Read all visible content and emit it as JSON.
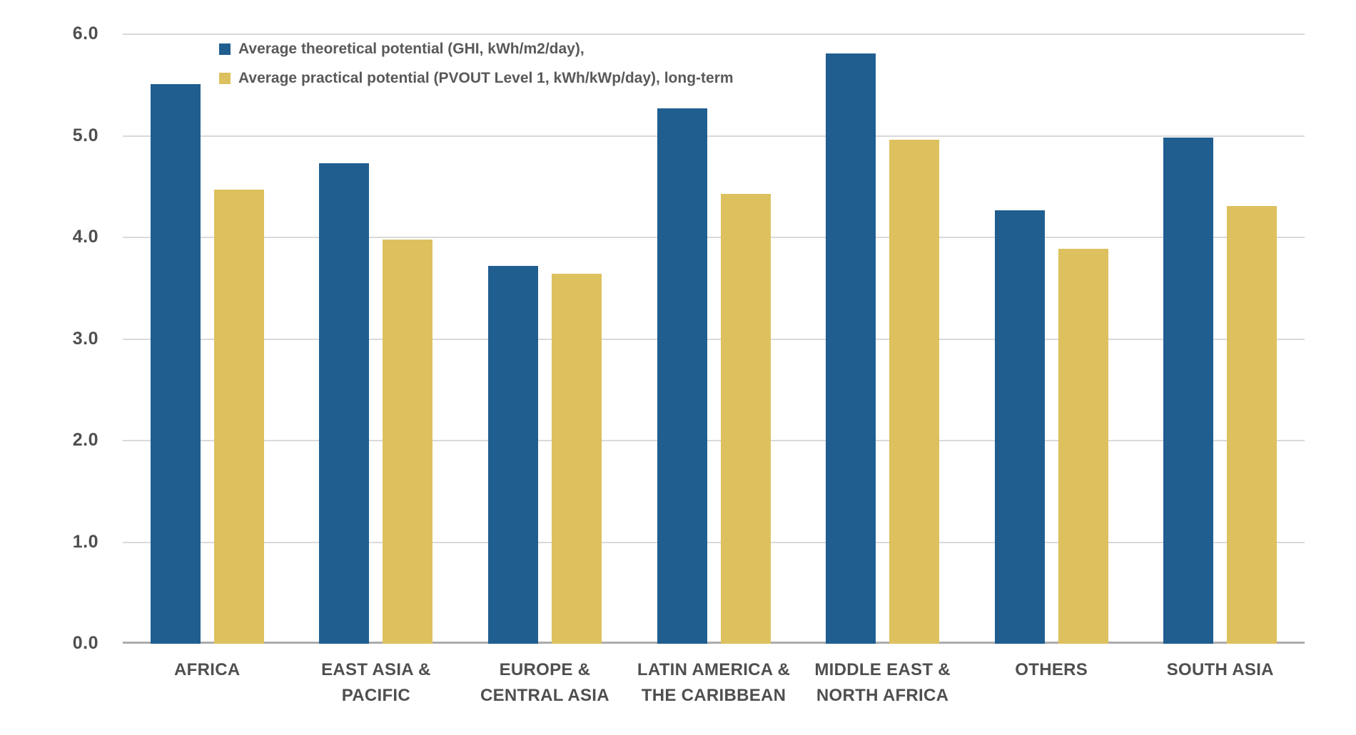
{
  "chart_data": {
    "type": "bar",
    "title": "",
    "xlabel": "",
    "ylabel": "",
    "categories": [
      "AFRICA",
      "EAST ASIA & PACIFIC",
      "EUROPE & CENTRAL ASIA",
      "LATIN AMERICA & THE CARIBBEAN",
      "MIDDLE EAST & NORTH AFRICA",
      "OTHERS",
      "SOUTH ASIA"
    ],
    "series": [
      {
        "name": "Average theoretical potential (GHI, kWh/m2/day),",
        "color": "#205e90",
        "values": [
          5.51,
          4.73,
          3.72,
          5.27,
          5.81,
          4.27,
          4.98
        ]
      },
      {
        "name": "Average practical potential (PVOUT Level 1, kWh/kWp/day), long-term",
        "color": "#ddc15e",
        "values": [
          4.47,
          3.98,
          3.64,
          4.43,
          4.96,
          3.89,
          4.31
        ]
      }
    ],
    "ylim": [
      0,
      6
    ],
    "ytick_step": 1,
    "ytick_labels": [
      "0.0",
      "1.0",
      "2.0",
      "3.0",
      "4.0",
      "5.0",
      "6.0"
    ],
    "grid": true,
    "legend_position": "top-left-inside"
  },
  "colors": {
    "background": "#ffffff",
    "gridline": "#d9d9d9",
    "axis_baseline": "#ababab",
    "axis_text": "#4f4f4f",
    "legend_text": "#595959",
    "series_theoretical": "#205e90",
    "series_practical": "#ddc15e"
  }
}
